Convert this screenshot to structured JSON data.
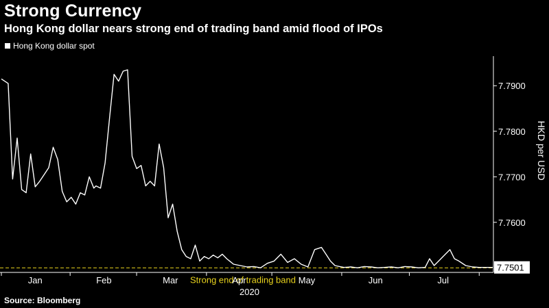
{
  "title": "Strong Currency",
  "subtitle": "Hong Kong dollar nears strong end of trading band amid flood of IPOs",
  "source": "Source: Bloomberg",
  "colors": {
    "background": "#000000",
    "line": "#ffffff",
    "band_line": "#e8d21d",
    "band_label": "#e8d21d",
    "axis": "#ffffff"
  },
  "chart_data": {
    "type": "line",
    "legend": {
      "entries": [
        "Hong Kong dollar spot"
      ],
      "placement": "top-left"
    },
    "ylabel": "HKD per USD",
    "ylim": [
      7.749,
      7.7965
    ],
    "yticks": [
      7.76,
      7.77,
      7.78,
      7.79
    ],
    "ytick_labels": [
      "7.7600",
      "7.7700",
      "7.7800",
      "7.7900"
    ],
    "xlim": [
      0,
      218
    ],
    "xticks": [
      {
        "label": "Jan",
        "x": 15
      },
      {
        "label": "Feb",
        "x": 45.5
      },
      {
        "label": "Mar",
        "x": 75
      },
      {
        "label": "Apr",
        "x": 105.5
      },
      {
        "label": "May",
        "x": 135.5
      },
      {
        "label": "Jun",
        "x": 166
      },
      {
        "label": "Jul",
        "x": 196
      }
    ],
    "year_label": "2020",
    "last_value_label": "7.7501",
    "reference_line": {
      "value": 7.75,
      "label": "Strong end of trading band"
    },
    "series": [
      {
        "name": "Hong Kong dollar spot",
        "x": [
          0,
          3,
          5,
          7,
          9,
          11,
          13,
          15,
          17,
          19,
          21,
          23,
          25,
          27,
          29,
          31,
          33,
          35,
          37,
          39,
          41,
          42,
          44,
          46,
          48,
          50,
          52,
          54,
          56,
          58,
          60,
          62,
          64,
          66,
          68,
          70,
          72,
          74,
          76,
          78,
          80,
          82,
          84,
          86,
          88,
          90,
          92,
          94,
          96,
          98,
          100,
          103,
          106,
          109,
          112,
          115,
          118,
          121,
          124,
          127,
          130,
          133,
          136,
          139,
          142,
          144,
          146,
          148,
          150,
          152,
          155,
          158,
          161,
          164,
          167,
          170,
          173,
          176,
          179,
          182,
          185,
          188,
          190,
          192,
          194,
          197,
          199,
          201,
          203,
          206,
          209,
          212,
          215,
          218
        ],
        "values": [
          7.7915,
          7.7905,
          7.7695,
          7.7785,
          7.7672,
          7.7665,
          7.775,
          7.7678,
          7.769,
          7.7705,
          7.772,
          7.7765,
          7.7738,
          7.7668,
          7.7645,
          7.7655,
          7.764,
          7.7665,
          7.766,
          7.77,
          7.7675,
          7.768,
          7.7675,
          7.773,
          7.783,
          7.7925,
          7.791,
          7.7932,
          7.7935,
          7.7745,
          7.7718,
          7.7725,
          7.768,
          7.769,
          7.768,
          7.7772,
          7.772,
          7.761,
          7.764,
          7.758,
          7.754,
          7.7525,
          7.752,
          7.755,
          7.7515,
          7.7525,
          7.752,
          7.7528,
          7.7522,
          7.753,
          7.752,
          7.7508,
          7.7505,
          7.7502,
          7.7503,
          7.75,
          7.751,
          7.7515,
          7.753,
          7.7512,
          7.752,
          7.7508,
          7.7502,
          7.754,
          7.7545,
          7.753,
          7.7515,
          7.7505,
          7.7503,
          7.7501,
          7.7502,
          7.75,
          7.7503,
          7.7502,
          7.75,
          7.7501,
          7.7502,
          7.75,
          7.7503,
          7.7502,
          7.75,
          7.7501,
          7.752,
          7.7505,
          7.7515,
          7.753,
          7.754,
          7.752,
          7.7515,
          7.7505,
          7.7502,
          7.7501,
          7.7501,
          7.7501
        ]
      }
    ]
  }
}
